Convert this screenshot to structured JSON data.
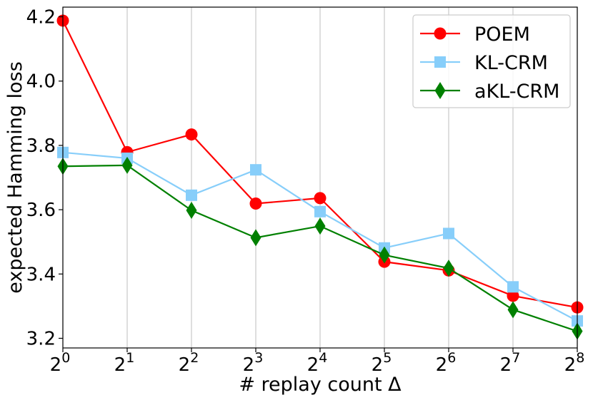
{
  "chart_data": {
    "type": "line",
    "xlabel": "# replay count Δ",
    "ylabel": "expected Hamming loss",
    "x_base": "2",
    "x_exponents": [
      "0",
      "1",
      "2",
      "3",
      "4",
      "5",
      "6",
      "7",
      "8"
    ],
    "ylim": [
      3.17,
      4.23
    ],
    "yticks": [
      "3.2",
      "3.4",
      "3.6",
      "3.8",
      "4.0",
      "4.2"
    ],
    "ytick_values": [
      3.2,
      3.4,
      3.6,
      3.8,
      4.0,
      4.2
    ],
    "grid": "vertical",
    "legend_position": "top-right",
    "series": [
      {
        "name": "POEM",
        "color": "#ff0000",
        "marker": "circle",
        "values": [
          4.188,
          3.779,
          3.834,
          3.619,
          3.636,
          3.438,
          3.411,
          3.332,
          3.296
        ]
      },
      {
        "name": "KL-CRM",
        "color": "#87cefa",
        "marker": "square",
        "values": [
          3.778,
          3.76,
          3.645,
          3.724,
          3.594,
          3.481,
          3.526,
          3.36,
          3.254
        ]
      },
      {
        "name": "aKL-CRM",
        "color": "#008000",
        "marker": "diamond",
        "values": [
          3.735,
          3.738,
          3.598,
          3.513,
          3.549,
          3.459,
          3.418,
          3.289,
          3.222
        ]
      }
    ]
  }
}
